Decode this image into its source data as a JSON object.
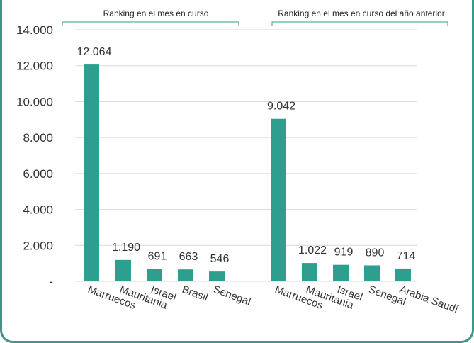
{
  "chart_data": {
    "type": "bar",
    "groups": [
      {
        "label": "Ranking en el mes en curso",
        "categories": [
          "Marruecos",
          "Mauritania",
          "Israel",
          "Brasil",
          "Senegal"
        ],
        "values": [
          12064,
          1190,
          691,
          663,
          546
        ],
        "value_labels": [
          "12.064",
          "1.190",
          "691",
          "663",
          "546"
        ]
      },
      {
        "label": "Ranking en el mes en curso del año anterior",
        "categories": [
          "Marruecos",
          "Mauritania",
          "Israel",
          "Senegal",
          "Arabia Saudí"
        ],
        "values": [
          9042,
          1022,
          919,
          890,
          714
        ],
        "value_labels": [
          "9.042",
          "1.022",
          "919",
          "890",
          "714"
        ]
      }
    ],
    "y_ticks": [
      "-",
      "2.000",
      "4.000",
      "6.000",
      "8.000",
      "10.000",
      "12.000",
      "14.000"
    ],
    "ylim": [
      0,
      14000
    ],
    "grid": true,
    "bar_color": "#2e9e8e",
    "grid_color": "#d9d9d9",
    "frame_color": "#3a9a8a"
  }
}
